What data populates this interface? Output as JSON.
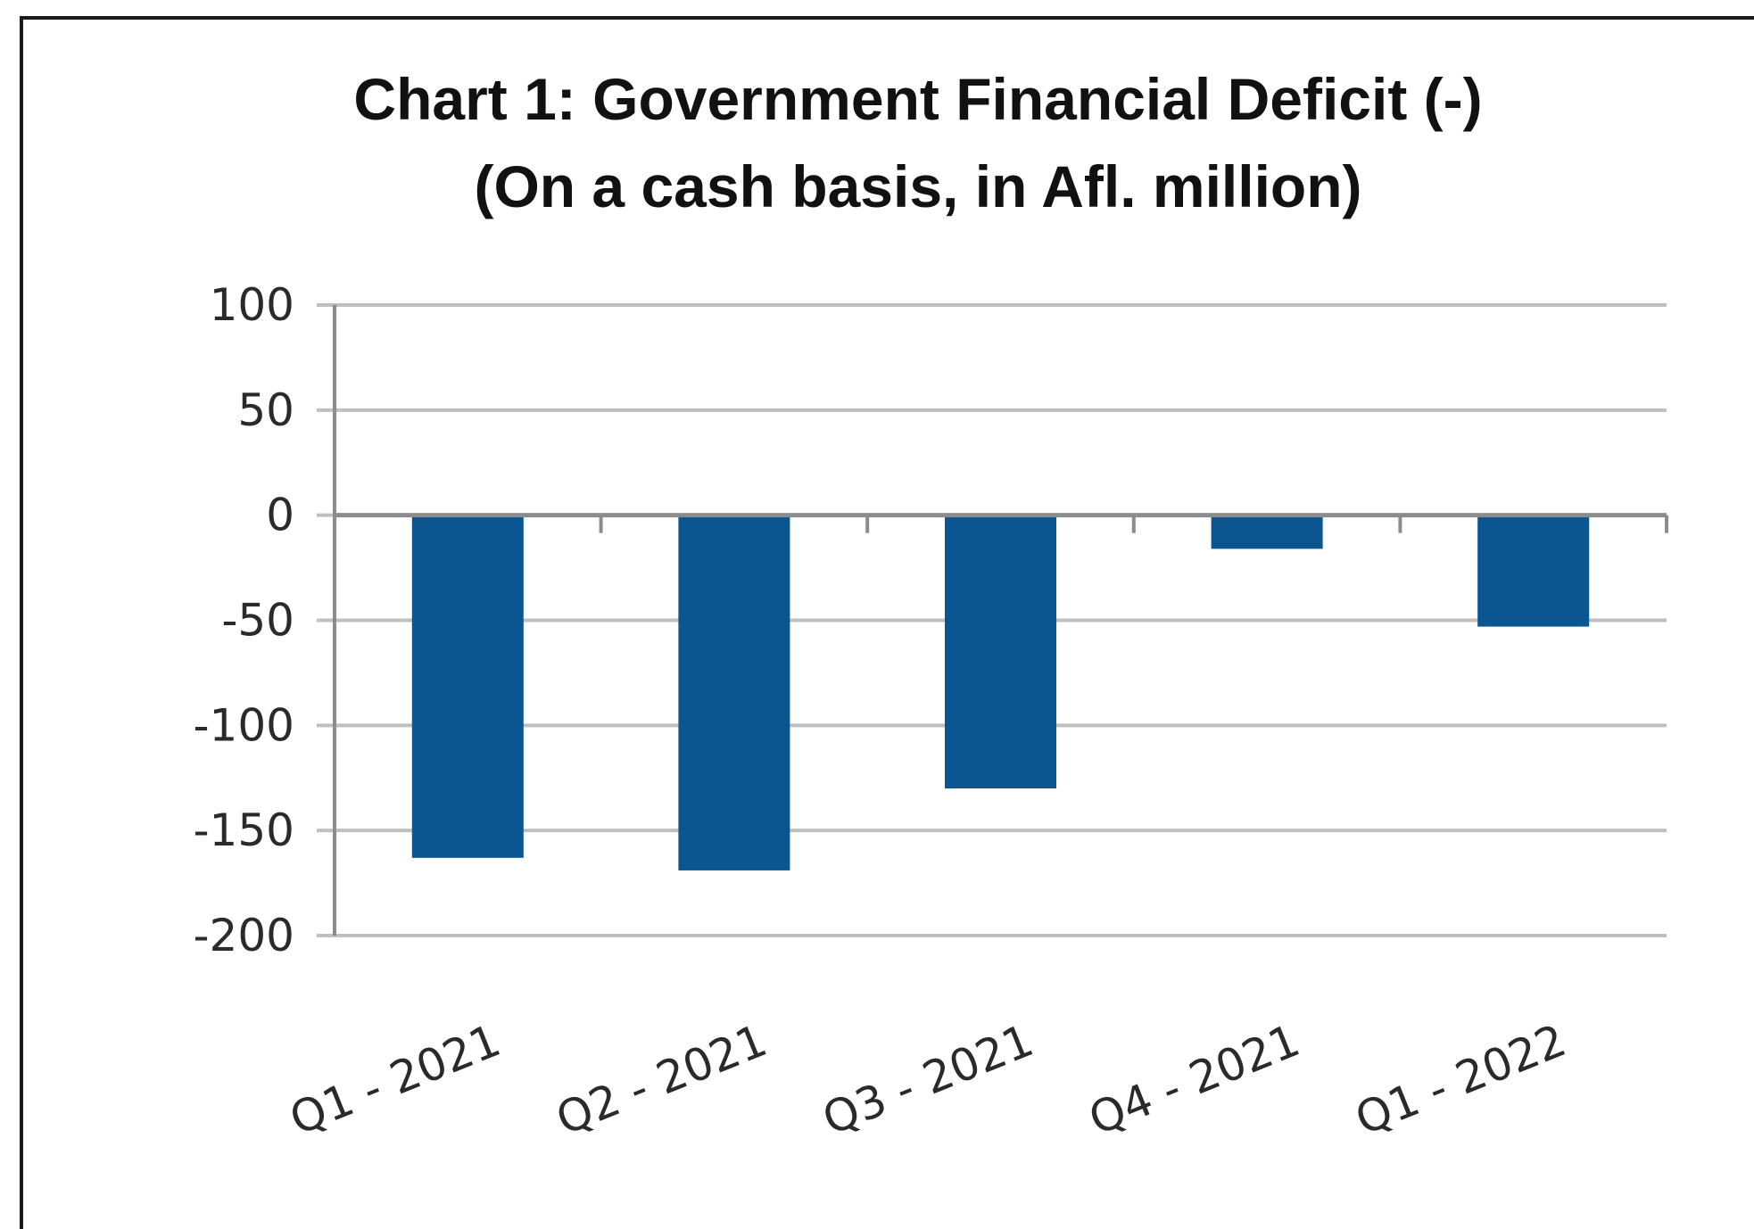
{
  "chart_data": {
    "type": "bar",
    "title": "Chart 1: Government Financial Deficit (-)",
    "subtitle": "(On a cash basis, in Afl. million)",
    "categories": [
      "Q1 - 2021",
      "Q2 - 2021",
      "Q3 - 2021",
      "Q4 - 2021",
      "Q1 - 2022"
    ],
    "values": [
      -163,
      -169,
      -130,
      -16,
      -53
    ],
    "ylim": [
      -200,
      100
    ],
    "yticks": [
      100,
      50,
      0,
      -50,
      -100,
      -150,
      -200
    ],
    "grid": true,
    "legend": "none",
    "bar_color": "#0b5590",
    "grid_color": "#bfbfbf"
  }
}
